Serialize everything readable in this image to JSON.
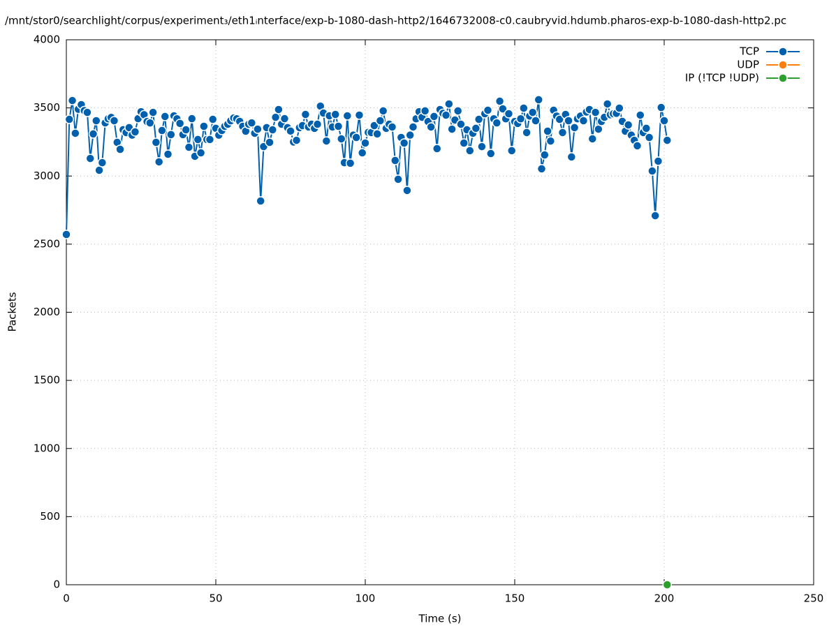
{
  "chart_data": {
    "type": "linespoints",
    "title": "/mnt/stor0/searchlight/corpus/experiment₃/eth1ᵢnterface/exp-b-1080-dash-http2/1646732008-c0.caubryvid.hdumb.pharos-exp-b-1080-dash-http2.pc",
    "x_label": "Time (s)",
    "y_label": "Packets",
    "xlim": [
      0,
      250
    ],
    "xticks": [
      0,
      50,
      100,
      150,
      200,
      250
    ],
    "ylim": [
      0,
      4000
    ],
    "yticks": [
      0,
      500,
      1000,
      1500,
      2000,
      2500,
      3000,
      3500,
      4000
    ],
    "grid": true,
    "legend": "top-right",
    "series": [
      {
        "name": "TCP",
        "color": "#0060ad",
        "x": [
          0,
          1,
          2,
          3,
          4,
          5,
          6,
          7,
          8,
          9,
          10,
          11,
          12,
          13,
          14,
          15,
          16,
          17,
          18,
          19,
          20,
          21,
          22,
          23,
          24,
          25,
          26,
          27,
          28,
          29,
          30,
          31,
          32,
          33,
          34,
          35,
          36,
          37,
          38,
          39,
          40,
          41,
          42,
          43,
          44,
          45,
          46,
          47,
          48,
          49,
          50,
          51,
          52,
          53,
          54,
          55,
          56,
          57,
          58,
          59,
          60,
          61,
          62,
          63,
          64,
          65,
          66,
          67,
          68,
          69,
          70,
          71,
          72,
          73,
          74,
          75,
          76,
          77,
          78,
          79,
          80,
          81,
          82,
          83,
          84,
          85,
          86,
          87,
          88,
          89,
          90,
          91,
          92,
          93,
          94,
          95,
          96,
          97,
          98,
          99,
          100,
          101,
          102,
          103,
          104,
          105,
          106,
          107,
          108,
          109,
          110,
          111,
          112,
          113,
          114,
          115,
          116,
          117,
          118,
          119,
          120,
          121,
          122,
          123,
          124,
          125,
          126,
          127,
          128,
          129,
          130,
          131,
          132,
          133,
          134,
          135,
          136,
          137,
          138,
          139,
          140,
          141,
          142,
          143,
          144,
          145,
          146,
          147,
          148,
          149,
          150,
          151,
          152,
          153,
          154,
          155,
          156,
          157,
          158,
          159,
          160,
          161,
          162,
          163,
          164,
          165,
          166,
          167,
          168,
          169,
          170,
          171,
          172,
          173,
          174,
          175,
          176,
          177,
          178,
          179,
          180,
          181,
          182,
          183,
          184,
          185,
          186,
          187,
          188,
          189,
          190,
          191,
          192,
          193,
          194,
          195,
          196,
          197,
          198,
          199,
          200,
          201
        ],
        "values": [
          2571,
          3416,
          3554,
          3314,
          3490,
          3524,
          3480,
          3467,
          3129,
          3309,
          3406,
          3042,
          3098,
          3390,
          3420,
          3430,
          3406,
          3247,
          3196,
          3340,
          3319,
          3355,
          3300,
          3324,
          3421,
          3472,
          3450,
          3400,
          3390,
          3467,
          3247,
          3104,
          3334,
          3437,
          3160,
          3304,
          3442,
          3420,
          3386,
          3304,
          3339,
          3211,
          3421,
          3145,
          3268,
          3170,
          3365,
          3268,
          3268,
          3416,
          3350,
          3300,
          3334,
          3365,
          3380,
          3406,
          3426,
          3420,
          3401,
          3365,
          3329,
          3380,
          3390,
          3314,
          3344,
          2817,
          3216,
          3355,
          3247,
          3339,
          3431,
          3488,
          3380,
          3421,
          3355,
          3330,
          3250,
          3262,
          3355,
          3370,
          3452,
          3360,
          3380,
          3350,
          3380,
          3513,
          3462,
          3257,
          3442,
          3360,
          3452,
          3365,
          3273,
          3098,
          3442,
          3094,
          3300,
          3283,
          3447,
          3170,
          3242,
          3320,
          3319,
          3370,
          3309,
          3406,
          3478,
          3350,
          3380,
          3360,
          3114,
          2976,
          3283,
          3242,
          2894,
          3300,
          3360,
          3420,
          3472,
          3431,
          3478,
          3400,
          3360,
          3437,
          3201,
          3488,
          3460,
          3447,
          3529,
          3344,
          3411,
          3478,
          3380,
          3242,
          3339,
          3186,
          3314,
          3350,
          3416,
          3216,
          3457,
          3483,
          3165,
          3420,
          3390,
          3549,
          3493,
          3420,
          3457,
          3186,
          3400,
          3386,
          3420,
          3498,
          3319,
          3440,
          3467,
          3406,
          3560,
          3053,
          3155,
          3329,
          3257,
          3483,
          3440,
          3416,
          3319,
          3452,
          3406,
          3140,
          3355,
          3420,
          3440,
          3406,
          3470,
          3488,
          3273,
          3467,
          3344,
          3400,
          3431,
          3529,
          3450,
          3457,
          3460,
          3498,
          3401,
          3329,
          3375,
          3300,
          3262,
          3222,
          3447,
          3319,
          3350,
          3283,
          3037,
          2709,
          3109,
          3503,
          3406,
          3262
        ]
      },
      {
        "name": "UDP",
        "color": "#ff7f0e",
        "x": [],
        "values": []
      },
      {
        "name": "IP (!TCP  !UDP)",
        "color": "#2ca02c",
        "x": [
          201
        ],
        "values": [
          0
        ]
      }
    ]
  }
}
